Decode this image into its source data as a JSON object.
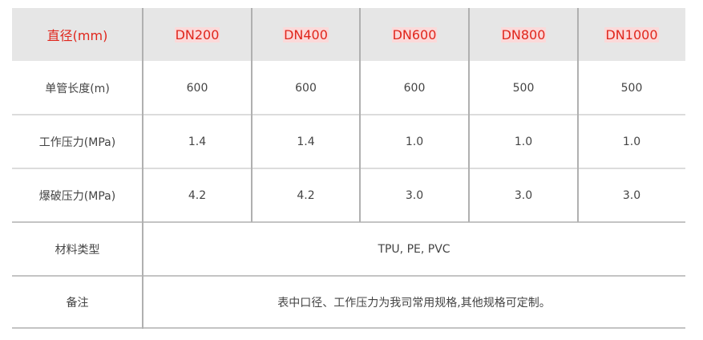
{
  "header": {
    "label": "直径(mm)",
    "columns": [
      "DN200",
      "DN400",
      "DN600",
      "DN800",
      "DN1000"
    ]
  },
  "rows": [
    {
      "label": "单管长度(m)",
      "values": [
        "600",
        "600",
        "600",
        "500",
        "500"
      ]
    },
    {
      "label": "工作压力(MPa)",
      "values": [
        "1.4",
        "1.4",
        "1.0",
        "1.0",
        "1.0"
      ]
    },
    {
      "label": "爆破压力(MPa)",
      "values": [
        "4.2",
        "4.2",
        "3.0",
        "3.0",
        "3.0"
      ]
    }
  ],
  "material": {
    "label": "材料类型",
    "value": "TPU, PE, PVC"
  },
  "note": {
    "label": "备注",
    "value": "表中口径、工作压力为我司常用规格,其他规格可定制。"
  },
  "colors": {
    "header_text": "#e0261c",
    "header_bg": "#e6e6e6",
    "body_text": "#444444"
  }
}
